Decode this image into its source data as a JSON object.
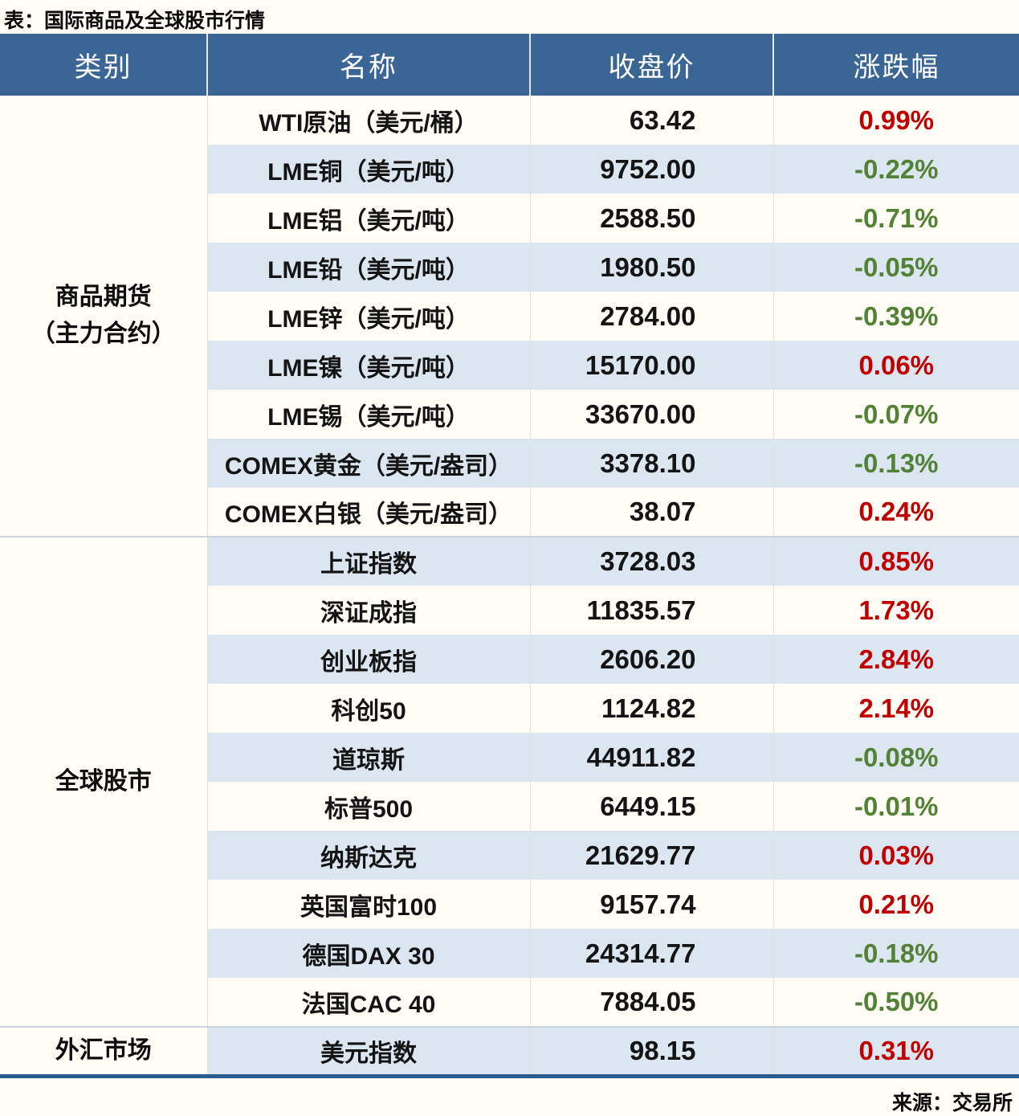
{
  "title": "表：国际商品及全球股市行情",
  "source": "来源：交易所",
  "colors": {
    "up_red": "#c00000",
    "down_green": "#538135",
    "header_blue": "#3a6595",
    "stripe_blue": "#dce6f1",
    "page_bg": "#fffdf6",
    "bottom_border": "#2b5a8c"
  },
  "table": {
    "headers": [
      "类别",
      "名称",
      "收盘价",
      "涨跌幅"
    ],
    "sections": [
      {
        "category_lines": [
          "商品期货",
          "（主力合约）"
        ],
        "rows": [
          {
            "name": "WTI原油（美元/桶）",
            "close": "63.42",
            "change": "0.99%",
            "direction": "up"
          },
          {
            "name": "LME铜（美元/吨）",
            "close": "9752.00",
            "change": "-0.22%",
            "direction": "down"
          },
          {
            "name": "LME铝（美元/吨）",
            "close": "2588.50",
            "change": "-0.71%",
            "direction": "down"
          },
          {
            "name": "LME铅（美元/吨）",
            "close": "1980.50",
            "change": "-0.05%",
            "direction": "down"
          },
          {
            "name": "LME锌（美元/吨）",
            "close": "2784.00",
            "change": "-0.39%",
            "direction": "down"
          },
          {
            "name": "LME镍（美元/吨）",
            "close": "15170.00",
            "change": "0.06%",
            "direction": "up"
          },
          {
            "name": "LME锡（美元/吨）",
            "close": "33670.00",
            "change": "-0.07%",
            "direction": "down"
          },
          {
            "name": "COMEX黄金（美元/盎司）",
            "close": "3378.10",
            "change": "-0.13%",
            "direction": "down"
          },
          {
            "name": "COMEX白银（美元/盎司）",
            "close": "38.07",
            "change": "0.24%",
            "direction": "up"
          }
        ]
      },
      {
        "category_lines": [
          "全球股市"
        ],
        "rows": [
          {
            "name": "上证指数",
            "close": "3728.03",
            "change": "0.85%",
            "direction": "up"
          },
          {
            "name": "深证成指",
            "close": "11835.57",
            "change": "1.73%",
            "direction": "up"
          },
          {
            "name": "创业板指",
            "close": "2606.20",
            "change": "2.84%",
            "direction": "up"
          },
          {
            "name": "科创50",
            "close": "1124.82",
            "change": "2.14%",
            "direction": "up"
          },
          {
            "name": "道琼斯",
            "close": "44911.82",
            "change": "-0.08%",
            "direction": "down"
          },
          {
            "name": "标普500",
            "close": "6449.15",
            "change": "-0.01%",
            "direction": "down"
          },
          {
            "name": "纳斯达克",
            "close": "21629.77",
            "change": "0.03%",
            "direction": "up"
          },
          {
            "name": "英国富时100",
            "close": "9157.74",
            "change": "0.21%",
            "direction": "up"
          },
          {
            "name": "德国DAX 30",
            "close": "24314.77",
            "change": "-0.18%",
            "direction": "down"
          },
          {
            "name": "法国CAC 40",
            "close": "7884.05",
            "change": "-0.50%",
            "direction": "down"
          }
        ]
      },
      {
        "category_lines": [
          "外汇市场"
        ],
        "rows": [
          {
            "name": "美元指数",
            "close": "98.15",
            "change": "0.31%",
            "direction": "up"
          }
        ]
      }
    ]
  },
  "chart_data": {
    "type": "table",
    "title": "表：国际商品及全球股市行情",
    "columns": [
      "类别",
      "名称",
      "收盘价",
      "涨跌幅"
    ],
    "rows": [
      [
        "商品期货（主力合约）",
        "WTI原油（美元/桶）",
        63.42,
        "0.99%"
      ],
      [
        "商品期货（主力合约）",
        "LME铜（美元/吨）",
        9752.0,
        "-0.22%"
      ],
      [
        "商品期货（主力合约）",
        "LME铝（美元/吨）",
        2588.5,
        "-0.71%"
      ],
      [
        "商品期货（主力合约）",
        "LME铅（美元/吨）",
        1980.5,
        "-0.05%"
      ],
      [
        "商品期货（主力合约）",
        "LME锌（美元/吨）",
        2784.0,
        "-0.39%"
      ],
      [
        "商品期货（主力合约）",
        "LME镍（美元/吨）",
        15170.0,
        "0.06%"
      ],
      [
        "商品期货（主力合约）",
        "LME锡（美元/吨）",
        33670.0,
        "-0.07%"
      ],
      [
        "商品期货（主力合约）",
        "COMEX黄金（美元/盎司）",
        3378.1,
        "-0.13%"
      ],
      [
        "商品期货（主力合约）",
        "COMEX白银（美元/盎司）",
        38.07,
        "0.24%"
      ],
      [
        "全球股市",
        "上证指数",
        3728.03,
        "0.85%"
      ],
      [
        "全球股市",
        "深证成指",
        11835.57,
        "1.73%"
      ],
      [
        "全球股市",
        "创业板指",
        2606.2,
        "2.84%"
      ],
      [
        "全球股市",
        "科创50",
        1124.82,
        "2.14%"
      ],
      [
        "全球股市",
        "道琼斯",
        44911.82,
        "-0.08%"
      ],
      [
        "全球股市",
        "标普500",
        6449.15,
        "-0.01%"
      ],
      [
        "全球股市",
        "纳斯达克",
        21629.77,
        "0.03%"
      ],
      [
        "全球股市",
        "英国富时100",
        9157.74,
        "0.21%"
      ],
      [
        "全球股市",
        "德国DAX 30",
        24314.77,
        "-0.18%"
      ],
      [
        "全球股市",
        "法国CAC 40",
        7884.05,
        "-0.50%"
      ],
      [
        "外汇市场",
        "美元指数",
        98.15,
        "0.31%"
      ]
    ],
    "source": "来源：交易所",
    "style_notes": "positive change = red (#c00000), negative change = green (#538135); alternating row stripes #dce6f1"
  }
}
